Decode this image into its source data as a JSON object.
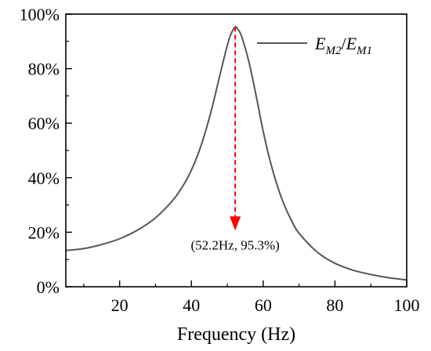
{
  "chart_data": {
    "type": "line",
    "title": "",
    "xlabel": "Frequency (Hz)",
    "ylabel": "",
    "xlim": [
      5,
      100
    ],
    "ylim": [
      0,
      100
    ],
    "x_ticks": [
      20,
      40,
      60,
      80,
      100
    ],
    "y_ticks": [
      0,
      20,
      40,
      60,
      80,
      100
    ],
    "y_tick_labels": [
      "0%",
      "20%",
      "40%",
      "60%",
      "80%",
      "100%"
    ],
    "grid": false,
    "legend": {
      "placement": "top-right",
      "entry": {
        "main1": "E",
        "sub1": "M2",
        "sep": "/",
        "main2": "E",
        "sub2": "M1"
      }
    },
    "series": [
      {
        "color": "#555555",
        "x": [
          5,
          10,
          15,
          20,
          25,
          30,
          35,
          38,
          40,
          42,
          44,
          46,
          48,
          50,
          51,
          52.2,
          53,
          54,
          56,
          58,
          60,
          62,
          64,
          66,
          68,
          70,
          75,
          80,
          85,
          90,
          95,
          100
        ],
        "y": [
          13.3,
          14.0,
          15.5,
          17.6,
          20.8,
          25.3,
          32.0,
          37.8,
          42.8,
          49.2,
          57.3,
          67.0,
          78.0,
          88.5,
          92.6,
          95.3,
          94.3,
          91.8,
          82.6,
          70.3,
          57.0,
          45.8,
          36.8,
          29.6,
          24.0,
          19.6,
          12.8,
          8.6,
          6.1,
          4.5,
          3.3,
          2.5
        ]
      }
    ],
    "annotation": {
      "x": 52.2,
      "y_from": 95.3,
      "y_to": 20.6,
      "color": "#ff0000",
      "text": "(52.2Hz, 95.3%)"
    }
  }
}
